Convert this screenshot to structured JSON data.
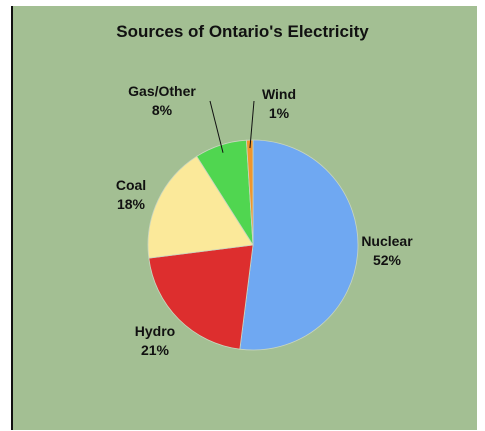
{
  "chart_data": {
    "type": "pie",
    "title": "Sources of Ontario's Electricity",
    "slices": [
      {
        "label": "Nuclear",
        "value_text": "52%",
        "value": 52,
        "color": "#6fa8f2"
      },
      {
        "label": "Hydro",
        "value_text": "21%",
        "value": 21,
        "color": "#dd2e2e"
      },
      {
        "label": "Coal",
        "value_text": "18%",
        "value": 18,
        "color": "#fbe99a"
      },
      {
        "label": "Gas/Other",
        "value_text": "8%",
        "value": 8,
        "color": "#50d650"
      },
      {
        "label": "Wind",
        "value_text": "1%",
        "value": 1,
        "color": "#f0962e"
      }
    ],
    "background_color": "#a3bf93"
  }
}
